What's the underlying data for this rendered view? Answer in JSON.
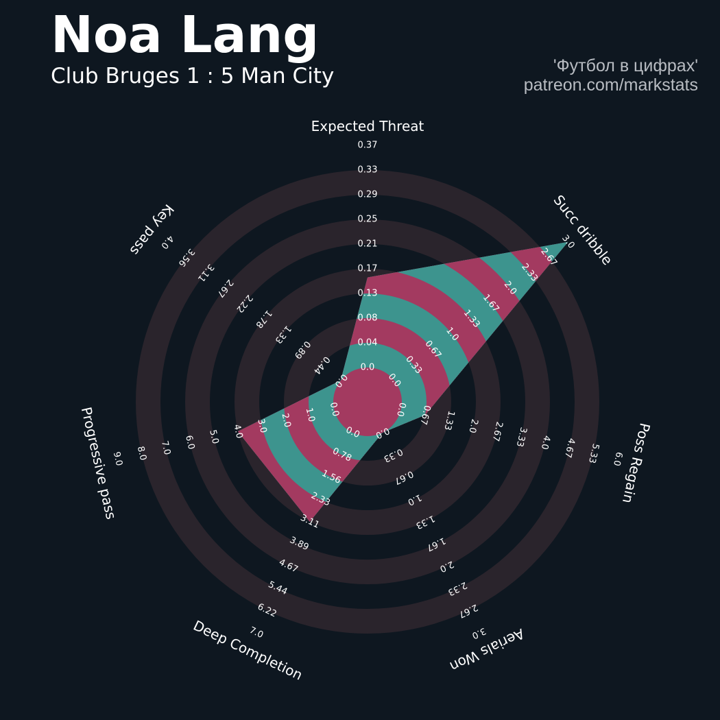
{
  "header": {
    "player_name": "Noa Lang",
    "match": "Club Bruges 1 : 5 Man City",
    "credit_line1": "'Футбол в цифрах'",
    "credit_line2": "patreon.com/markstats"
  },
  "colors": {
    "background": "#0e1720",
    "ring_band": "#2a242c",
    "fill_pink": "#a33a60",
    "fill_teal": "#3d948e",
    "text": "#ffffff",
    "credit_text": "#b8bcc2"
  },
  "chart_data": {
    "type": "radar",
    "title": "Noa Lang",
    "subtitle": "Club Bruges 1 : 5 Man City",
    "axes": [
      {
        "label": "Expected Threat",
        "value": 0.15,
        "ticks": [
          "0.0",
          "0.04",
          "0.08",
          "0.13",
          "0.17",
          "0.21",
          "0.25",
          "0.29",
          "0.33",
          "0.37"
        ]
      },
      {
        "label": "Succ dribble",
        "value": 3.0,
        "ticks": [
          "0.0",
          "0.33",
          "0.67",
          "1.0",
          "1.33",
          "1.67",
          "2.0",
          "2.33",
          "2.67",
          "3.0"
        ]
      },
      {
        "label": "Poss Regain",
        "value": 0.67,
        "ticks": [
          "0.0",
          "0.67",
          "1.33",
          "2.0",
          "2.67",
          "3.33",
          "4.0",
          "4.67",
          "5.33",
          "6.0"
        ]
      },
      {
        "label": "Aerials Won",
        "value": 0.0,
        "ticks": [
          "0.0",
          "0.33",
          "0.67",
          "1.0",
          "1.33",
          "1.67",
          "2.0",
          "2.33",
          "2.67",
          "3.0"
        ]
      },
      {
        "label": "Deep Completion",
        "value": 3.11,
        "ticks": [
          "0.0",
          "0.78",
          "1.56",
          "2.33",
          "3.11",
          "3.89",
          "4.67",
          "5.44",
          "6.22",
          "7.0"
        ]
      },
      {
        "label": "Progressive pass",
        "value": 4.0,
        "ticks": [
          "0.0",
          "1.0",
          "2.0",
          "3.0",
          "4.0",
          "5.0",
          "6.0",
          "7.0",
          "8.0",
          "9.0"
        ]
      },
      {
        "label": "Key pass",
        "value": 0.0,
        "ticks": [
          "0.0",
          "0.44",
          "0.89",
          "1.33",
          "1.78",
          "2.22",
          "2.67",
          "3.11",
          "3.56",
          "4.0"
        ]
      }
    ]
  }
}
